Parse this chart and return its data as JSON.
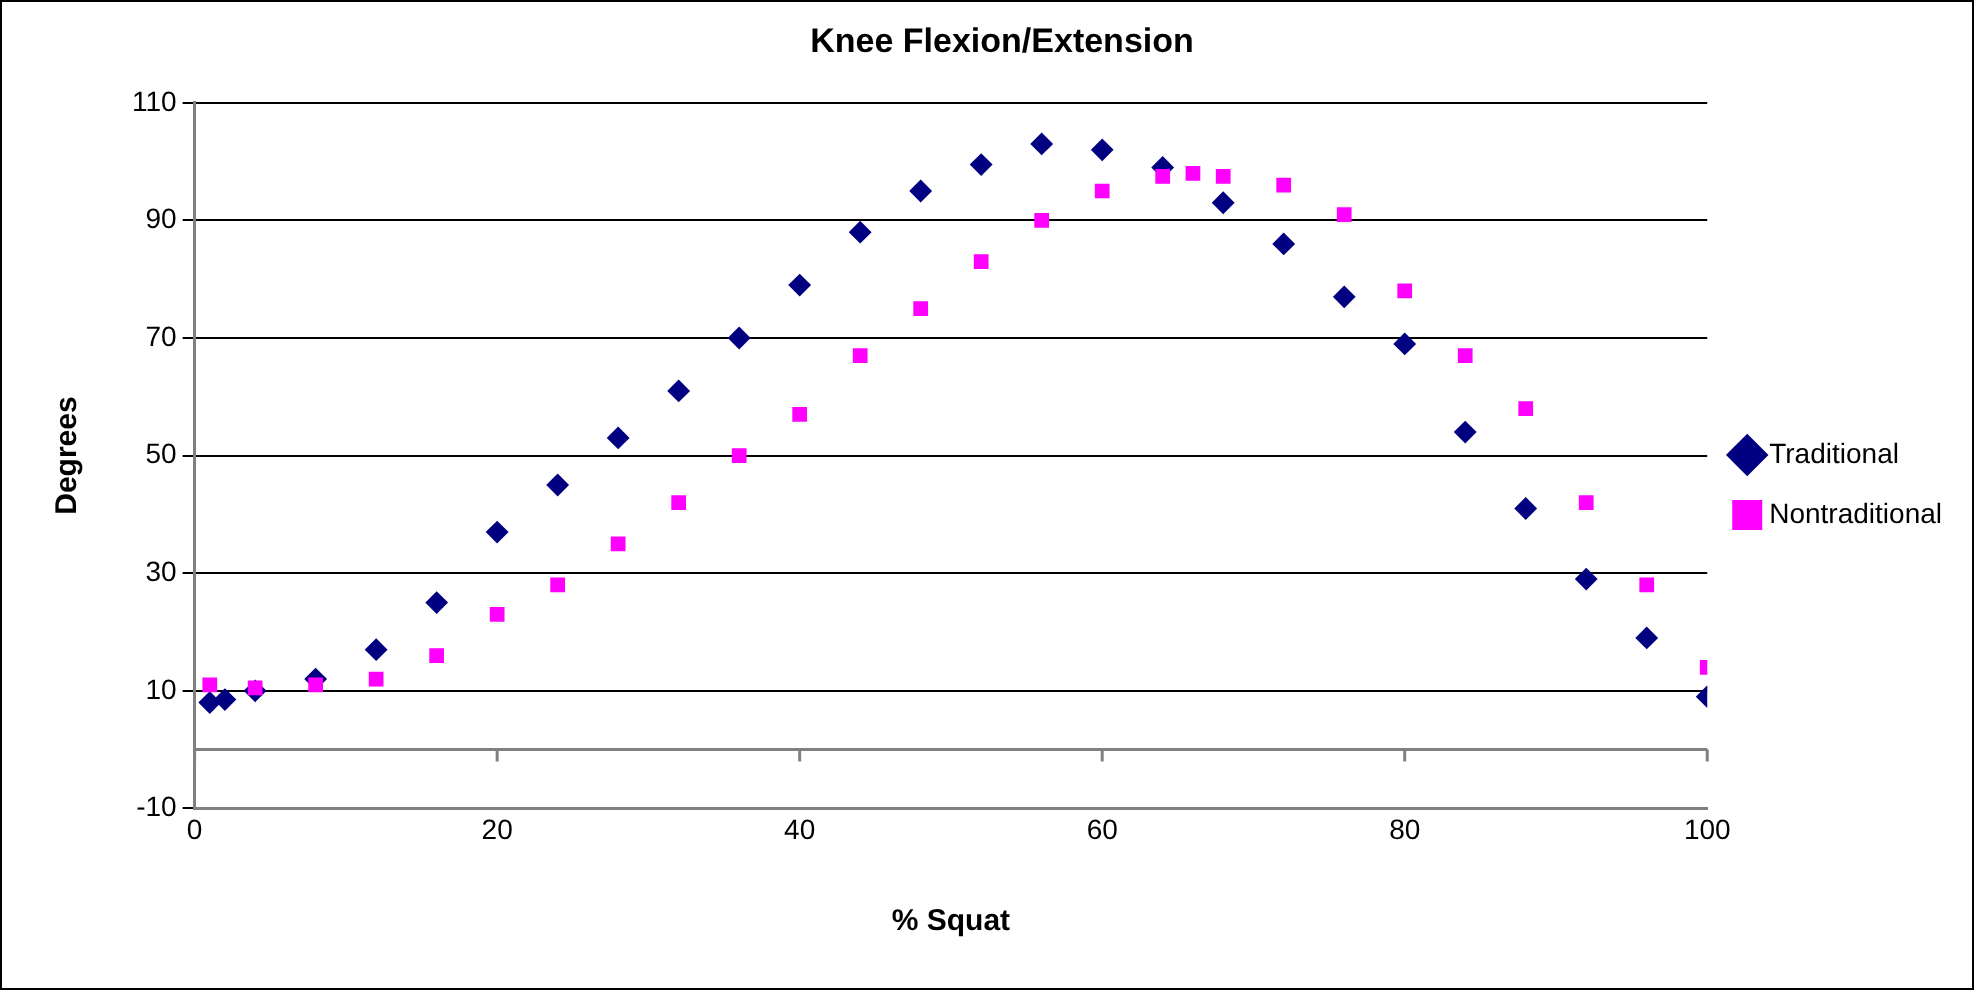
{
  "chart_data": {
    "type": "scatter",
    "title": "Knee Flexion/Extension",
    "xlabel": "% Squat",
    "ylabel": "Degrees",
    "xlim": [
      0,
      100
    ],
    "xticks": [
      {
        "value": 0,
        "label": "0"
      },
      20,
      40,
      60,
      80,
      100
    ],
    "ylim": [
      -10,
      110
    ],
    "yticks": [
      -10,
      10,
      30,
      50,
      70,
      90,
      110
    ],
    "grid": "y",
    "legend": "right",
    "ref_lines": [
      {
        "axis": "y",
        "value": 0,
        "color": "#808080"
      }
    ],
    "series": [
      {
        "name": "Traditional",
        "color": "#000080",
        "marker": "diamond",
        "x": [
          1,
          2,
          4,
          8,
          12,
          16,
          20,
          24,
          28,
          32,
          36,
          40,
          44,
          48,
          52,
          56,
          60,
          64,
          68,
          72,
          76,
          80,
          84,
          88,
          92,
          96,
          100
        ],
        "values": [
          8,
          8.5,
          10,
          12,
          17,
          25,
          37,
          45,
          53,
          61,
          70,
          79,
          88,
          95,
          99.5,
          103,
          102,
          99,
          93,
          86,
          77,
          69,
          54,
          41,
          29,
          19,
          9
        ]
      },
      {
        "name": "Nontraditional",
        "color": "#ff00ff",
        "marker": "square",
        "x": [
          1,
          4,
          8,
          12,
          16,
          20,
          24,
          28,
          32,
          36,
          40,
          44,
          48,
          52,
          56,
          60,
          64,
          66,
          68,
          72,
          76,
          80,
          84,
          88,
          92,
          96,
          100
        ],
        "values": [
          11,
          10.5,
          11,
          12,
          16,
          23,
          28,
          35,
          42,
          50,
          57,
          67,
          75,
          83,
          90,
          95,
          97.5,
          98,
          97.5,
          96,
          91,
          78,
          67,
          58,
          42,
          28,
          14
        ]
      }
    ]
  }
}
